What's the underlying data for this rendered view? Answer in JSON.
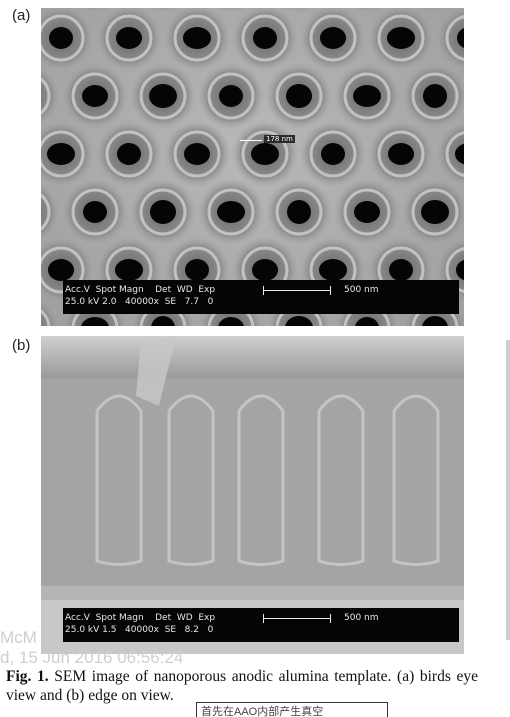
{
  "panel_a": {
    "label": "(a)",
    "measurement_label": "178 nm",
    "info_bar": {
      "line1": "Acc.V  Spot Magn    Det  WD  Exp",
      "line2": "25.0 kV 2.0   40000x  SE   7.7   0",
      "scale_label": "500 nm"
    }
  },
  "panel_b": {
    "label": "(b)",
    "info_bar": {
      "line1": "Acc.V  Spot Magn    Det  WD  Exp",
      "line2": "25.0 kV 1.5   40000x  SE   8.2   0",
      "scale_label": "500 nm"
    }
  },
  "watermark": {
    "line1": "McM",
    "line2": "d, 15 Jun 2016 06:56:24"
  },
  "caption": {
    "lead": "Fig. 1.",
    "text": "  SEM image of nanoporous anodic alumina template. (a) birds eye view and (b) edge on view."
  },
  "annotation_box": "首先在AAO内部产生真空",
  "colors": {
    "background": "#ffffff",
    "sem_gray": "#a9a9a9",
    "pore": "#050505",
    "info_bar": "#050505"
  }
}
